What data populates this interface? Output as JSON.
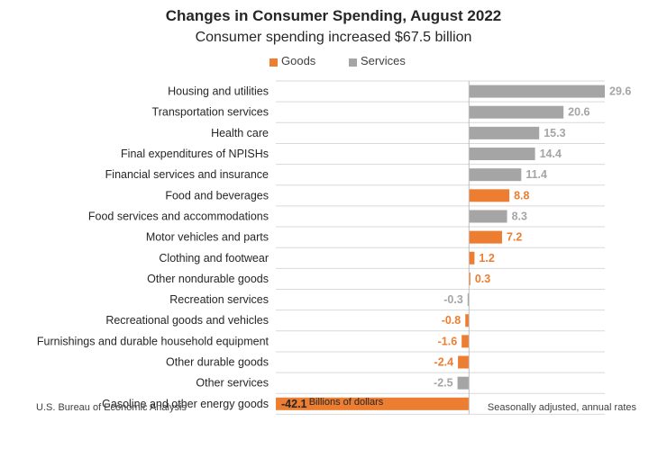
{
  "chart_data": {
    "type": "bar",
    "orientation": "horizontal",
    "title": "Changes in Consumer Spending, August 2022",
    "subtitle": "Consumer spending increased $67.5 billion",
    "xlabel": "Billions of dollars",
    "legend": [
      {
        "name": "Goods",
        "color": "#ED7D31"
      },
      {
        "name": "Services",
        "color": "#A5A5A5"
      }
    ],
    "categories": [
      "Housing and utilities",
      "Transportation services",
      "Health care",
      "Final expenditures of NPISHs",
      "Financial services and insurance",
      "Food and beverages",
      "Food services and accommodations",
      "Motor vehicles and parts",
      "Clothing and footwear",
      "Other nondurable goods",
      "Recreation services",
      "Recreational goods and vehicles",
      "Furnishings and durable household equipment",
      "Other durable goods",
      "Other services",
      "Gasoline and other energy goods"
    ],
    "values": [
      29.6,
      20.6,
      15.3,
      14.4,
      11.4,
      8.8,
      8.3,
      7.2,
      1.2,
      0.3,
      -0.3,
      -0.8,
      -1.6,
      -2.4,
      -2.5,
      -42.1
    ],
    "value_labels": [
      "29.6",
      "20.6",
      "15.3",
      "14.4",
      "11.4",
      "8.8",
      "8.3",
      "7.2",
      "1.2",
      "0.3",
      "-0.3",
      "-0.8",
      "-1.6",
      "-2.4",
      "-2.5",
      "-42.1"
    ],
    "series_type": [
      "Services",
      "Services",
      "Services",
      "Services",
      "Services",
      "Goods",
      "Services",
      "Goods",
      "Goods",
      "Goods",
      "Services",
      "Goods",
      "Goods",
      "Goods",
      "Services",
      "Goods"
    ],
    "xlim": [
      -42.1,
      29.6
    ],
    "grid": "horizontal"
  },
  "footer": {
    "source": "U.S. Bureau of Economic Analysis",
    "note": "Seasonally adjusted, annual rates"
  }
}
